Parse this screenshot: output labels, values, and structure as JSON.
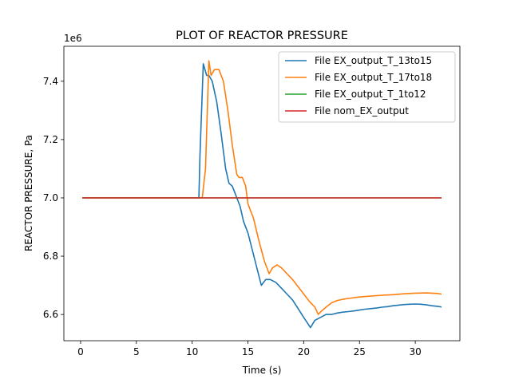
{
  "chart_data": {
    "type": "line",
    "title": "PLOT OF REACTOR PRESSURE",
    "xlabel": "Time (s)",
    "ylabel": "REACTOR PRESSURE, Pa",
    "y_offset_label": "1e6",
    "xlim": [
      -1.5,
      34
    ],
    "ylim": [
      6.51,
      7.52
    ],
    "x_ticks": [
      0,
      5,
      10,
      15,
      20,
      25,
      30
    ],
    "x_tick_labels": [
      "0",
      "5",
      "10",
      "15",
      "20",
      "25",
      "30"
    ],
    "y_ticks": [
      6.6,
      6.8,
      7.0,
      7.2,
      7.4
    ],
    "y_tick_labels": [
      "6.6",
      "6.8",
      "7.0",
      "7.2",
      "7.4"
    ],
    "grid": false,
    "legend_position": "top-right",
    "series": [
      {
        "name": "File EX_output_T_13to15",
        "color": "#1f77b4",
        "x": [
          0.2,
          10.6,
          10.7,
          11.0,
          11.3,
          11.5,
          11.8,
          12.2,
          12.6,
          13.0,
          13.3,
          13.6,
          13.9,
          14.3,
          14.6,
          15.0,
          15.4,
          15.8,
          16.2,
          16.6,
          17.0,
          17.5,
          18.0,
          18.5,
          19.0,
          19.5,
          20.0,
          20.6,
          21.0,
          21.5,
          22.0,
          22.5,
          23.0,
          23.5,
          24.0,
          24.5,
          25.0,
          25.5,
          26.0,
          26.5,
          27.0,
          27.5,
          28.0,
          28.5,
          29.0,
          29.5,
          30.0,
          30.5,
          31.0,
          31.5,
          32.0,
          32.3
        ],
        "values": [
          7.0,
          7.0,
          7.15,
          7.46,
          7.42,
          7.42,
          7.4,
          7.33,
          7.22,
          7.1,
          7.05,
          7.04,
          7.01,
          6.97,
          6.92,
          6.88,
          6.82,
          6.76,
          6.7,
          6.72,
          6.72,
          6.71,
          6.69,
          6.67,
          6.65,
          6.62,
          6.59,
          6.555,
          6.58,
          6.59,
          6.6,
          6.6,
          6.605,
          6.608,
          6.61,
          6.612,
          6.615,
          6.618,
          6.62,
          6.622,
          6.625,
          6.627,
          6.63,
          6.632,
          6.634,
          6.635,
          6.636,
          6.635,
          6.633,
          6.63,
          6.628,
          6.626
        ]
      },
      {
        "name": "File EX_output_T_17to18",
        "color": "#ff7f0e",
        "x": [
          0.2,
          10.6,
          10.9,
          11.2,
          11.5,
          11.7,
          12.0,
          12.4,
          12.8,
          13.2,
          13.6,
          14.0,
          14.2,
          14.5,
          14.8,
          15.0,
          15.5,
          16.0,
          16.5,
          16.9,
          17.2,
          17.6,
          18.0,
          18.5,
          19.0,
          19.5,
          20.0,
          20.5,
          21.0,
          21.3,
          21.6,
          22.0,
          22.5,
          23.0,
          23.5,
          24.0,
          25.0,
          26.0,
          27.0,
          28.0,
          29.0,
          30.0,
          31.0,
          32.0,
          32.3
        ],
        "values": [
          7.0,
          7.0,
          7.0,
          7.1,
          7.47,
          7.42,
          7.44,
          7.44,
          7.4,
          7.3,
          7.18,
          7.08,
          7.07,
          7.07,
          7.04,
          6.98,
          6.93,
          6.85,
          6.78,
          6.74,
          6.76,
          6.77,
          6.76,
          6.74,
          6.72,
          6.695,
          6.67,
          6.645,
          6.625,
          6.6,
          6.612,
          6.625,
          6.64,
          6.648,
          6.652,
          6.655,
          6.66,
          6.663,
          6.666,
          6.668,
          6.671,
          6.673,
          6.674,
          6.672,
          6.67
        ]
      },
      {
        "name": "File EX_output_T_1to12",
        "color": "#2ca02c",
        "x": [
          0.2,
          32.3
        ],
        "values": [
          7.0,
          7.0
        ]
      },
      {
        "name": "File nom_EX_output",
        "color": "#d62728",
        "x": [
          0.2,
          32.3
        ],
        "values": [
          7.0,
          7.0
        ]
      }
    ]
  }
}
